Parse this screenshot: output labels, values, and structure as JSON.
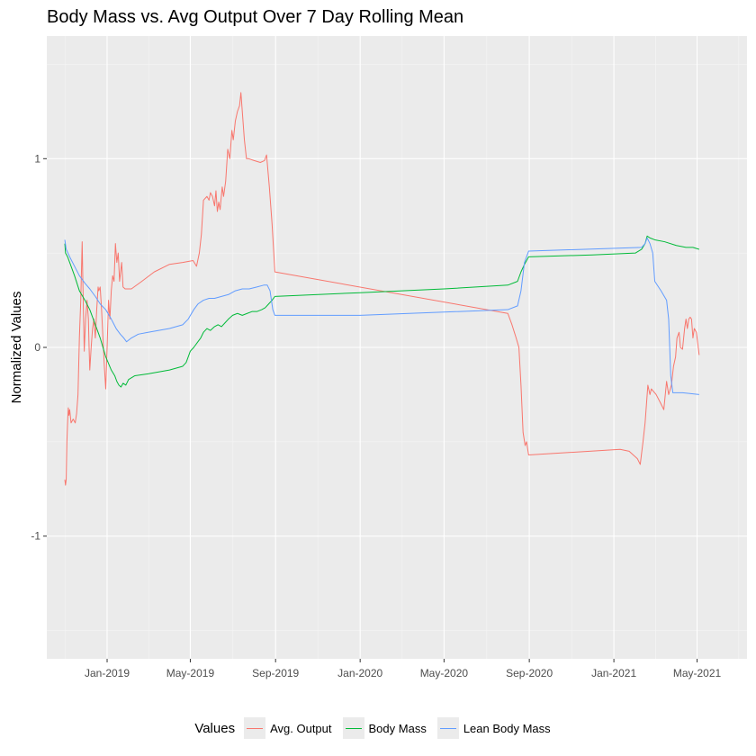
{
  "chart_data": {
    "type": "line",
    "title": "Body Mass vs. Avg Output Over 7 Day Rolling Mean",
    "xlabel": "",
    "ylabel": "Normalized Values",
    "ylim": [
      -1.65,
      1.65
    ],
    "xlim": [
      "2018-10-06",
      "2021-07-12"
    ],
    "x_tick_labels": [
      {
        "date": "2019-01-01",
        "label": "Jan-2019"
      },
      {
        "date": "2019-05-01",
        "label": "May-2019"
      },
      {
        "date": "2019-09-01",
        "label": "Sep-2019"
      },
      {
        "date": "2020-01-01",
        "label": "Jan-2020"
      },
      {
        "date": "2020-05-01",
        "label": "May-2020"
      },
      {
        "date": "2020-09-01",
        "label": "Sep-2020"
      },
      {
        "date": "2021-01-01",
        "label": "Jan-2021"
      },
      {
        "date": "2021-05-01",
        "label": "May-2021"
      }
    ],
    "y_tick_labels": [
      {
        "value": 1,
        "label": "1"
      },
      {
        "value": 0,
        "label": "0"
      },
      {
        "value": -1,
        "label": "-1"
      }
    ],
    "grid": true,
    "legend": {
      "title": "Values",
      "position": "bottom"
    },
    "series": [
      {
        "name": "Avg. Output",
        "color": "#F8766D",
        "points": [
          [
            "2018-11-01",
            -0.7
          ],
          [
            "2018-11-02",
            -0.73
          ],
          [
            "2018-11-03",
            -0.7
          ],
          [
            "2018-11-04",
            -0.5
          ],
          [
            "2018-11-05",
            -0.4
          ],
          [
            "2018-11-06",
            -0.32
          ],
          [
            "2018-11-07",
            -0.36
          ],
          [
            "2018-11-08",
            -0.33
          ],
          [
            "2018-11-10",
            -0.4
          ],
          [
            "2018-11-13",
            -0.38
          ],
          [
            "2018-11-16",
            -0.4
          ],
          [
            "2018-11-18",
            -0.35
          ],
          [
            "2018-11-20",
            -0.25
          ],
          [
            "2018-11-22",
            0.05
          ],
          [
            "2018-11-24",
            0.25
          ],
          [
            "2018-11-26",
            0.56
          ],
          [
            "2018-11-27",
            0.35
          ],
          [
            "2018-11-29",
            -0.02
          ],
          [
            "2018-12-01",
            0.15
          ],
          [
            "2018-12-03",
            0.25
          ],
          [
            "2018-12-05",
            0.15
          ],
          [
            "2018-12-06",
            0.0
          ],
          [
            "2018-12-07",
            -0.12
          ],
          [
            "2018-12-09",
            0.0
          ],
          [
            "2018-12-11",
            0.1
          ],
          [
            "2018-12-13",
            0.15
          ],
          [
            "2018-12-15",
            0.05
          ],
          [
            "2018-12-17",
            0.2
          ],
          [
            "2018-12-19",
            0.32
          ],
          [
            "2018-12-20",
            0.3
          ],
          [
            "2018-12-22",
            0.32
          ],
          [
            "2018-12-24",
            0.2
          ],
          [
            "2018-12-26",
            0.05
          ],
          [
            "2018-12-28",
            -0.1
          ],
          [
            "2018-12-30",
            -0.22
          ],
          [
            "2019-01-01",
            0.0
          ],
          [
            "2019-01-03",
            0.25
          ],
          [
            "2019-01-05",
            0.15
          ],
          [
            "2019-01-07",
            0.3
          ],
          [
            "2019-01-09",
            0.38
          ],
          [
            "2019-01-11",
            0.35
          ],
          [
            "2019-01-13",
            0.55
          ],
          [
            "2019-01-15",
            0.45
          ],
          [
            "2019-01-17",
            0.5
          ],
          [
            "2019-01-19",
            0.35
          ],
          [
            "2019-01-22",
            0.45
          ],
          [
            "2019-01-24",
            0.32
          ],
          [
            "2019-01-27",
            0.31
          ],
          [
            "2019-02-05",
            0.31
          ],
          [
            "2019-02-20",
            0.35
          ],
          [
            "2019-03-10",
            0.4
          ],
          [
            "2019-04-01",
            0.44
          ],
          [
            "2019-04-20",
            0.45
          ],
          [
            "2019-05-05",
            0.46
          ],
          [
            "2019-05-10",
            0.43
          ],
          [
            "2019-05-14",
            0.5
          ],
          [
            "2019-05-17",
            0.6
          ],
          [
            "2019-05-20",
            0.78
          ],
          [
            "2019-05-25",
            0.8
          ],
          [
            "2019-05-28",
            0.78
          ],
          [
            "2019-05-30",
            0.82
          ],
          [
            "2019-06-02",
            0.8
          ],
          [
            "2019-06-05",
            0.75
          ],
          [
            "2019-06-07",
            0.83
          ],
          [
            "2019-06-09",
            0.72
          ],
          [
            "2019-06-11",
            0.77
          ],
          [
            "2019-06-13",
            0.73
          ],
          [
            "2019-06-16",
            0.85
          ],
          [
            "2019-06-18",
            0.8
          ],
          [
            "2019-06-21",
            0.88
          ],
          [
            "2019-06-24",
            1.05
          ],
          [
            "2019-06-27",
            1.0
          ],
          [
            "2019-06-30",
            1.15
          ],
          [
            "2019-07-02",
            1.1
          ],
          [
            "2019-07-05",
            1.2
          ],
          [
            "2019-07-08",
            1.25
          ],
          [
            "2019-07-11",
            1.28
          ],
          [
            "2019-07-13",
            1.35
          ],
          [
            "2019-07-16",
            1.2
          ],
          [
            "2019-07-18",
            1.1
          ],
          [
            "2019-07-21",
            1.0
          ],
          [
            "2019-07-24",
            1.0
          ],
          [
            "2019-08-01",
            0.99
          ],
          [
            "2019-08-10",
            0.98
          ],
          [
            "2019-08-16",
            0.99
          ],
          [
            "2019-08-19",
            1.02
          ],
          [
            "2019-08-23",
            0.85
          ],
          [
            "2019-08-27",
            0.65
          ],
          [
            "2019-08-31",
            0.4
          ],
          [
            "2020-08-01",
            0.18
          ],
          [
            "2020-08-07",
            0.12
          ],
          [
            "2020-08-13",
            0.05
          ],
          [
            "2020-08-17",
            0.0
          ],
          [
            "2020-08-20",
            -0.2
          ],
          [
            "2020-08-23",
            -0.45
          ],
          [
            "2020-08-26",
            -0.52
          ],
          [
            "2020-08-28",
            -0.5
          ],
          [
            "2020-08-31",
            -0.57
          ],
          [
            "2021-01-10",
            -0.54
          ],
          [
            "2021-01-23",
            -0.55
          ],
          [
            "2021-02-04",
            -0.59
          ],
          [
            "2021-02-08",
            -0.62
          ],
          [
            "2021-02-12",
            -0.5
          ],
          [
            "2021-02-15",
            -0.4
          ],
          [
            "2021-02-17",
            -0.3
          ],
          [
            "2021-02-19",
            -0.2
          ],
          [
            "2021-02-22",
            -0.25
          ],
          [
            "2021-02-24",
            -0.22
          ],
          [
            "2021-03-03",
            -0.25
          ],
          [
            "2021-03-10",
            -0.3
          ],
          [
            "2021-03-14",
            -0.33
          ],
          [
            "2021-03-18",
            -0.18
          ],
          [
            "2021-03-21",
            -0.25
          ],
          [
            "2021-03-25",
            -0.2
          ],
          [
            "2021-03-28",
            -0.1
          ],
          [
            "2021-03-31",
            -0.05
          ],
          [
            "2021-04-02",
            0.05
          ],
          [
            "2021-04-05",
            0.08
          ],
          [
            "2021-04-07",
            0.0
          ],
          [
            "2021-04-10",
            -0.01
          ],
          [
            "2021-04-13",
            0.1
          ],
          [
            "2021-04-15",
            0.15
          ],
          [
            "2021-04-17",
            0.1
          ],
          [
            "2021-04-19",
            0.15
          ],
          [
            "2021-04-21",
            0.16
          ],
          [
            "2021-04-23",
            0.15
          ],
          [
            "2021-04-25",
            0.05
          ],
          [
            "2021-04-27",
            0.1
          ],
          [
            "2021-04-30",
            0.08
          ],
          [
            "2021-05-04",
            -0.04
          ]
        ]
      },
      {
        "name": "Body Mass",
        "color": "#00BA38",
        "points": [
          [
            "2018-11-01",
            0.55
          ],
          [
            "2018-11-02",
            0.5
          ],
          [
            "2018-11-05",
            0.48
          ],
          [
            "2018-11-10",
            0.43
          ],
          [
            "2018-11-15",
            0.38
          ],
          [
            "2018-11-22",
            0.3
          ],
          [
            "2018-11-30",
            0.25
          ],
          [
            "2018-12-07",
            0.2
          ],
          [
            "2018-12-15",
            0.12
          ],
          [
            "2018-12-22",
            0.05
          ],
          [
            "2018-12-30",
            -0.05
          ],
          [
            "2019-01-07",
            -0.12
          ],
          [
            "2019-01-12",
            -0.15
          ],
          [
            "2019-01-15",
            -0.18
          ],
          [
            "2019-01-18",
            -0.2
          ],
          [
            "2019-01-21",
            -0.21
          ],
          [
            "2019-01-24",
            -0.19
          ],
          [
            "2019-01-28",
            -0.2
          ],
          [
            "2019-02-01",
            -0.17
          ],
          [
            "2019-02-10",
            -0.15
          ],
          [
            "2019-03-01",
            -0.14
          ],
          [
            "2019-04-01",
            -0.12
          ],
          [
            "2019-04-20",
            -0.1
          ],
          [
            "2019-04-25",
            -0.08
          ],
          [
            "2019-05-01",
            -0.02
          ],
          [
            "2019-05-06",
            0.0
          ],
          [
            "2019-05-12",
            0.03
          ],
          [
            "2019-05-16",
            0.05
          ],
          [
            "2019-05-20",
            0.08
          ],
          [
            "2019-05-25",
            0.1
          ],
          [
            "2019-05-30",
            0.09
          ],
          [
            "2019-06-05",
            0.11
          ],
          [
            "2019-06-10",
            0.12
          ],
          [
            "2019-06-15",
            0.11
          ],
          [
            "2019-06-20",
            0.13
          ],
          [
            "2019-06-25",
            0.15
          ],
          [
            "2019-07-01",
            0.17
          ],
          [
            "2019-07-08",
            0.18
          ],
          [
            "2019-07-15",
            0.17
          ],
          [
            "2019-07-22",
            0.18
          ],
          [
            "2019-07-29",
            0.19
          ],
          [
            "2019-08-05",
            0.19
          ],
          [
            "2019-08-12",
            0.2
          ],
          [
            "2019-08-17",
            0.21
          ],
          [
            "2019-08-22",
            0.23
          ],
          [
            "2019-08-27",
            0.25
          ],
          [
            "2019-08-31",
            0.27
          ],
          [
            "2020-01-01",
            0.29
          ],
          [
            "2020-05-01",
            0.31
          ],
          [
            "2020-08-01",
            0.33
          ],
          [
            "2020-08-15",
            0.35
          ],
          [
            "2020-08-20",
            0.4
          ],
          [
            "2020-08-25",
            0.44
          ],
          [
            "2020-08-31",
            0.48
          ],
          [
            "2020-12-01",
            0.49
          ],
          [
            "2021-02-01",
            0.5
          ],
          [
            "2021-02-10",
            0.52
          ],
          [
            "2021-02-15",
            0.55
          ],
          [
            "2021-02-18",
            0.59
          ],
          [
            "2021-02-22",
            0.58
          ],
          [
            "2021-03-01",
            0.57
          ],
          [
            "2021-03-15",
            0.56
          ],
          [
            "2021-04-01",
            0.54
          ],
          [
            "2021-04-15",
            0.53
          ],
          [
            "2021-04-25",
            0.53
          ],
          [
            "2021-05-04",
            0.52
          ]
        ]
      },
      {
        "name": "Lean Body Mass",
        "color": "#619CFF",
        "points": [
          [
            "2018-11-01",
            0.57
          ],
          [
            "2018-11-03",
            0.52
          ],
          [
            "2018-11-08",
            0.48
          ],
          [
            "2018-11-15",
            0.43
          ],
          [
            "2018-11-22",
            0.38
          ],
          [
            "2018-11-30",
            0.34
          ],
          [
            "2018-12-07",
            0.31
          ],
          [
            "2018-12-15",
            0.27
          ],
          [
            "2018-12-22",
            0.23
          ],
          [
            "2018-12-30",
            0.2
          ],
          [
            "2019-01-07",
            0.15
          ],
          [
            "2019-01-14",
            0.1
          ],
          [
            "2019-01-20",
            0.07
          ],
          [
            "2019-01-25",
            0.05
          ],
          [
            "2019-01-29",
            0.03
          ],
          [
            "2019-02-05",
            0.05
          ],
          [
            "2019-02-15",
            0.07
          ],
          [
            "2019-03-01",
            0.08
          ],
          [
            "2019-04-01",
            0.1
          ],
          [
            "2019-04-20",
            0.12
          ],
          [
            "2019-04-28",
            0.15
          ],
          [
            "2019-05-06",
            0.2
          ],
          [
            "2019-05-12",
            0.23
          ],
          [
            "2019-05-20",
            0.25
          ],
          [
            "2019-05-28",
            0.26
          ],
          [
            "2019-06-05",
            0.26
          ],
          [
            "2019-06-15",
            0.27
          ],
          [
            "2019-06-25",
            0.28
          ],
          [
            "2019-07-05",
            0.3
          ],
          [
            "2019-07-15",
            0.31
          ],
          [
            "2019-07-25",
            0.31
          ],
          [
            "2019-08-05",
            0.32
          ],
          [
            "2019-08-15",
            0.33
          ],
          [
            "2019-08-20",
            0.33
          ],
          [
            "2019-08-24",
            0.3
          ],
          [
            "2019-08-28",
            0.2
          ],
          [
            "2019-08-31",
            0.17
          ],
          [
            "2020-01-01",
            0.17
          ],
          [
            "2020-08-01",
            0.2
          ],
          [
            "2020-08-15",
            0.22
          ],
          [
            "2020-08-20",
            0.3
          ],
          [
            "2020-08-25",
            0.45
          ],
          [
            "2020-08-31",
            0.51
          ],
          [
            "2021-02-10",
            0.53
          ],
          [
            "2021-02-15",
            0.55
          ],
          [
            "2021-02-18",
            0.58
          ],
          [
            "2021-02-22",
            0.55
          ],
          [
            "2021-02-26",
            0.5
          ],
          [
            "2021-03-01",
            0.35
          ],
          [
            "2021-03-10",
            0.3
          ],
          [
            "2021-03-18",
            0.25
          ],
          [
            "2021-03-21",
            0.15
          ],
          [
            "2021-03-24",
            -0.15
          ],
          [
            "2021-03-27",
            -0.24
          ],
          [
            "2021-04-10",
            -0.24
          ],
          [
            "2021-05-04",
            -0.25
          ]
        ]
      }
    ]
  }
}
